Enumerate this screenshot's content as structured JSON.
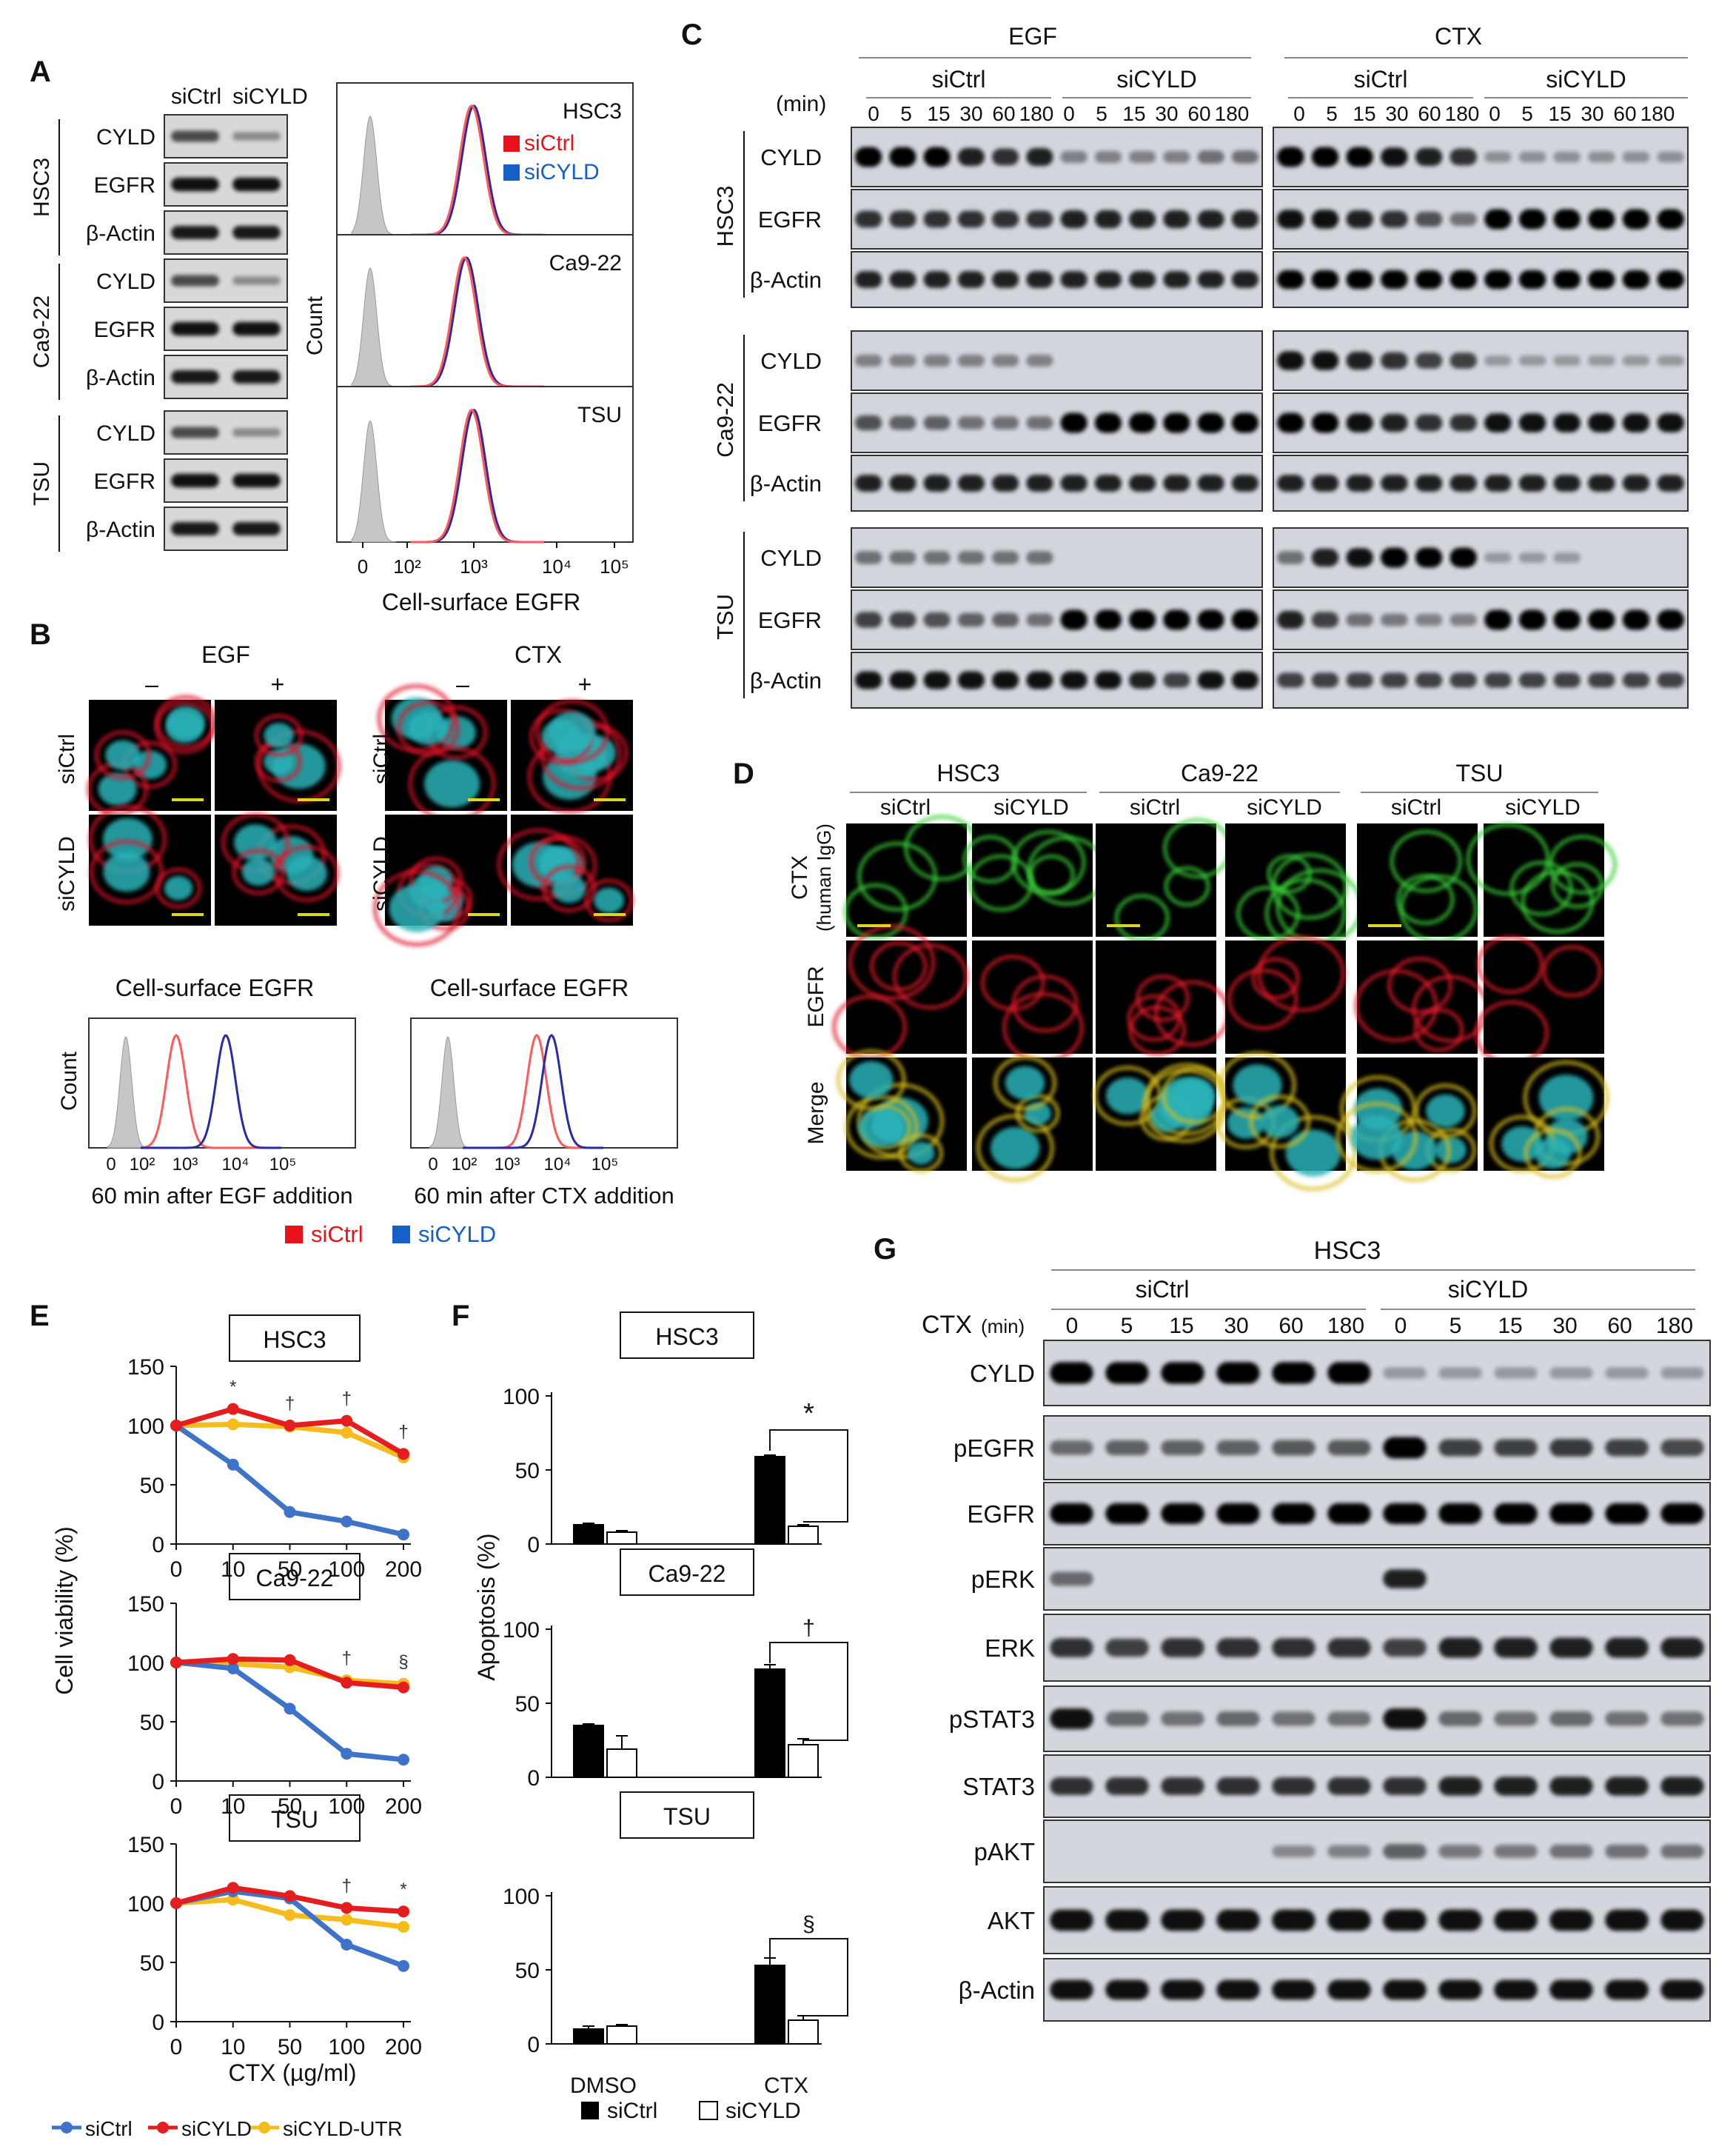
{
  "panels": {
    "a": "A",
    "b": "B",
    "c": "C",
    "d": "D",
    "e": "E",
    "f": "F",
    "g": "G"
  },
  "colors": {
    "sictrl": "#e8121a",
    "sicyld": "#1560c8",
    "line_sictrl": "#3f73c9",
    "line_sicyld": "#e41e1e",
    "line_utr": "#f6bc1c",
    "flow_sictrl": "#ff5a5a",
    "flow_sicyld": "#2a2aa8",
    "gray": "#c6c6c6"
  },
  "panel_a": {
    "cols": [
      "siCtrl",
      "siCYLD"
    ],
    "groups": [
      {
        "name": "HSC3",
        "rows": [
          "CYLD",
          "EGFR",
          "β-Actin"
        ]
      },
      {
        "name": "Ca9-22",
        "rows": [
          "CYLD",
          "EGFR",
          "β-Actin"
        ]
      },
      {
        "name": "TSU",
        "rows": [
          "CYLD",
          "EGFR",
          "β-Actin"
        ]
      }
    ],
    "flow_labels": [
      "HSC3",
      "Ca9-22",
      "TSU"
    ],
    "legend": [
      "siCtrl",
      "siCYLD"
    ],
    "ylabel": "Count",
    "xlabel": "Cell-surface EGFR",
    "ticks": [
      "0",
      "10²",
      "10³",
      "10⁴",
      "10⁵"
    ]
  },
  "panel_b": {
    "treat": [
      "EGF",
      "CTX"
    ],
    "signs": [
      "–",
      "+",
      "–",
      "+"
    ],
    "rows": [
      "siCtrl",
      "siCYLD"
    ],
    "caption": "Cell-surface EGFR",
    "ylabel": "Count",
    "ticks": [
      "0",
      "10²",
      "10³",
      "10⁴",
      "10⁵"
    ],
    "xlabels": [
      "60 min after EGF addition",
      "60 min after CTX addition"
    ],
    "legend": [
      "siCtrl",
      "siCYLD"
    ]
  },
  "panel_c": {
    "treat": [
      "EGF",
      "CTX"
    ],
    "groups": [
      "siCtrl",
      "siCYLD"
    ],
    "min_label": "(min)",
    "times": [
      "0",
      "5",
      "15",
      "30",
      "60",
      "180"
    ],
    "cells": [
      {
        "name": "HSC3",
        "rows": [
          "CYLD",
          "EGFR",
          "β-Actin"
        ]
      },
      {
        "name": "Ca9-22",
        "rows": [
          "CYLD",
          "EGFR",
          "β-Actin"
        ]
      },
      {
        "name": "TSU",
        "rows": [
          "CYLD",
          "EGFR",
          "β-Actin"
        ]
      }
    ]
  },
  "panel_d": {
    "cells": [
      "HSC3",
      "Ca9-22",
      "TSU"
    ],
    "cols": [
      "siCtrl",
      "siCYLD"
    ],
    "rows": [
      "CTX",
      "(human IgG)",
      "EGFR",
      "Merge"
    ]
  },
  "panel_e": {
    "ylabel": "Cell viability (%)",
    "xlabel": "CTX (µg/ml)",
    "legend": [
      "siCtrl",
      "siCYLD",
      "siCYLD-UTR"
    ],
    "yticks": [
      "150",
      "100",
      "50",
      "0"
    ]
  },
  "panel_f": {
    "ylabel": "Apoptosis (%)",
    "categories": [
      "DMSO",
      "CTX"
    ],
    "legend": [
      "siCtrl",
      "siCYLD"
    ],
    "yticks": [
      "100",
      "50",
      "0"
    ]
  },
  "panel_g": {
    "title": "HSC3",
    "groups": [
      "siCtrl",
      "siCYLD"
    ],
    "ctx_label": "CTX",
    "min_label": "(min)",
    "times": [
      "0",
      "5",
      "15",
      "30",
      "60",
      "180",
      "0",
      "5",
      "15",
      "30",
      "60",
      "180"
    ],
    "rows": [
      "CYLD",
      "pEGFR",
      "EGFR",
      "pERK",
      "ERK",
      "pSTAT3",
      "STAT3",
      "pAKT",
      "AKT",
      "β-Actin"
    ]
  },
  "chart_data": [
    {
      "type": "line",
      "panel": "E",
      "title": "HSC3",
      "xlabel": "CTX (µg/ml)",
      "ylabel": "Cell viability (%)",
      "categories": [
        "0",
        "10",
        "50",
        "100",
        "200"
      ],
      "ylim": [
        0,
        150
      ],
      "markers": [
        "",
        "*",
        "†",
        "†",
        "†"
      ],
      "series": [
        {
          "name": "siCtrl",
          "values": [
            100,
            67,
            27,
            19,
            8
          ]
        },
        {
          "name": "siCYLD",
          "values": [
            100,
            114,
            100,
            104,
            76
          ]
        },
        {
          "name": "siCYLD-UTR",
          "values": [
            100,
            101,
            99,
            94,
            73
          ]
        }
      ]
    },
    {
      "type": "line",
      "panel": "E",
      "title": "Ca9-22",
      "xlabel": "CTX (µg/ml)",
      "ylabel": "Cell viability (%)",
      "categories": [
        "0",
        "10",
        "50",
        "100",
        "200"
      ],
      "ylim": [
        0,
        150
      ],
      "markers": [
        "",
        "",
        "",
        "†",
        "§"
      ],
      "series": [
        {
          "name": "siCtrl",
          "values": [
            100,
            95,
            61,
            23,
            18
          ]
        },
        {
          "name": "siCYLD",
          "values": [
            100,
            103,
            102,
            83,
            79
          ]
        },
        {
          "name": "siCYLD-UTR",
          "values": [
            100,
            99,
            96,
            85,
            82
          ]
        }
      ]
    },
    {
      "type": "line",
      "panel": "E",
      "title": "TSU",
      "xlabel": "CTX (µg/ml)",
      "ylabel": "Cell viability (%)",
      "categories": [
        "0",
        "10",
        "50",
        "100",
        "200"
      ],
      "ylim": [
        0,
        150
      ],
      "markers": [
        "",
        "",
        "",
        "†",
        "*"
      ],
      "series": [
        {
          "name": "siCtrl",
          "values": [
            100,
            110,
            104,
            65,
            47
          ]
        },
        {
          "name": "siCYLD",
          "values": [
            100,
            113,
            106,
            96,
            93
          ]
        },
        {
          "name": "siCYLD-UTR",
          "values": [
            100,
            103,
            90,
            86,
            80
          ]
        }
      ]
    },
    {
      "type": "bar",
      "panel": "F",
      "title": "HSC3",
      "ylabel": "Apoptosis (%)",
      "categories": [
        "DMSO",
        "CTX"
      ],
      "ylim": [
        0,
        100
      ],
      "sig": "*",
      "series": [
        {
          "name": "siCtrl",
          "values": [
            13,
            59
          ],
          "errors": [
            1,
            1
          ]
        },
        {
          "name": "siCYLD",
          "values": [
            8,
            12
          ],
          "errors": [
            1,
            1
          ]
        }
      ]
    },
    {
      "type": "bar",
      "panel": "F",
      "title": "Ca9-22",
      "ylabel": "Apoptosis (%)",
      "categories": [
        "DMSO",
        "CTX"
      ],
      "ylim": [
        0,
        100
      ],
      "sig": "†",
      "series": [
        {
          "name": "siCtrl",
          "values": [
            35,
            73
          ],
          "errors": [
            1,
            3
          ]
        },
        {
          "name": "siCYLD",
          "values": [
            19,
            22
          ],
          "errors": [
            9,
            4
          ]
        }
      ]
    },
    {
      "type": "bar",
      "panel": "F",
      "title": "TSU",
      "ylabel": "Apoptosis (%)",
      "categories": [
        "DMSO",
        "CTX"
      ],
      "ylim": [
        0,
        100
      ],
      "sig": "§",
      "series": [
        {
          "name": "siCtrl",
          "values": [
            10,
            53
          ],
          "errors": [
            2,
            5
          ]
        },
        {
          "name": "siCYLD",
          "values": [
            12,
            16
          ],
          "errors": [
            1,
            3
          ]
        }
      ]
    }
  ]
}
